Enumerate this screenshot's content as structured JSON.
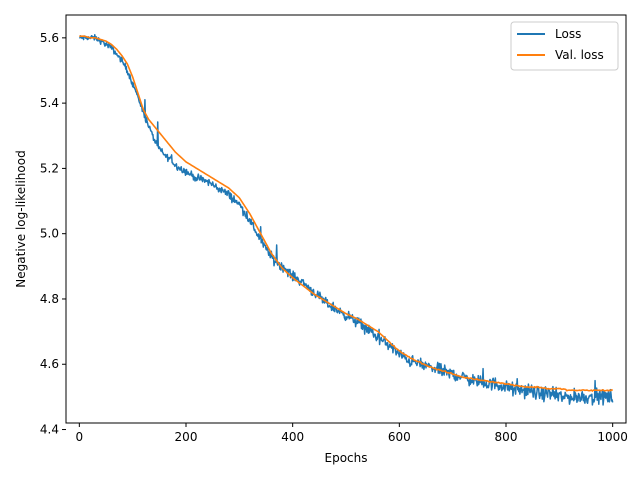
{
  "chart_data": {
    "type": "line",
    "title": "",
    "xlabel": "Epochs",
    "ylabel": "Negative log-likelihood",
    "xlim": [
      -25,
      1025
    ],
    "ylim": [
      4.42,
      5.67
    ],
    "xticks": [
      0,
      200,
      400,
      600,
      800,
      1000
    ],
    "yticks": [
      4.4,
      4.6,
      4.8,
      5.0,
      5.2,
      5.4,
      5.6
    ],
    "xtick_labels": [
      "0",
      "200",
      "400",
      "600",
      "800",
      "1000"
    ],
    "ytick_labels": [
      "4.4",
      "4.6",
      "4.8",
      "5.0",
      "5.2",
      "5.4",
      "5.6"
    ],
    "grid": false,
    "legend_position": "top-right",
    "series": [
      {
        "name": "Loss",
        "color": "#1f77b4",
        "noisy": true,
        "x": [
          0,
          10,
          20,
          30,
          40,
          50,
          60,
          70,
          80,
          90,
          100,
          110,
          120,
          130,
          140,
          150,
          160,
          170,
          180,
          190,
          200,
          220,
          240,
          260,
          280,
          300,
          320,
          340,
          360,
          380,
          400,
          420,
          440,
          460,
          480,
          500,
          520,
          540,
          560,
          580,
          600,
          620,
          640,
          660,
          680,
          700,
          720,
          740,
          760,
          780,
          800,
          820,
          840,
          860,
          880,
          900,
          920,
          940,
          960,
          980,
          1000
        ],
        "y": [
          5.6,
          5.6,
          5.6,
          5.6,
          5.59,
          5.58,
          5.57,
          5.55,
          5.53,
          5.5,
          5.46,
          5.42,
          5.37,
          5.33,
          5.29,
          5.26,
          5.24,
          5.23,
          5.21,
          5.2,
          5.19,
          5.17,
          5.16,
          5.14,
          5.12,
          5.09,
          5.04,
          4.98,
          4.93,
          4.9,
          4.87,
          4.85,
          4.82,
          4.79,
          4.77,
          4.75,
          4.73,
          4.71,
          4.68,
          4.66,
          4.63,
          4.61,
          4.6,
          4.59,
          4.58,
          4.57,
          4.56,
          4.55,
          4.54,
          4.54,
          4.53,
          4.52,
          4.52,
          4.51,
          4.51,
          4.5,
          4.5,
          4.5,
          4.5,
          4.5,
          4.5
        ]
      },
      {
        "name": "Val. loss",
        "color": "#ff7f0e",
        "noisy": false,
        "x": [
          0,
          10,
          20,
          30,
          40,
          50,
          60,
          70,
          80,
          90,
          100,
          110,
          120,
          130,
          140,
          150,
          160,
          170,
          180,
          190,
          200,
          220,
          240,
          260,
          280,
          300,
          320,
          340,
          360,
          380,
          400,
          420,
          440,
          460,
          480,
          500,
          520,
          540,
          560,
          580,
          600,
          620,
          640,
          660,
          680,
          700,
          720,
          740,
          760,
          780,
          800,
          820,
          840,
          860,
          880,
          900,
          920,
          940,
          960,
          980,
          1000
        ],
        "y": [
          5.605,
          5.605,
          5.6,
          5.6,
          5.595,
          5.59,
          5.58,
          5.565,
          5.545,
          5.52,
          5.48,
          5.43,
          5.38,
          5.35,
          5.33,
          5.31,
          5.29,
          5.27,
          5.25,
          5.235,
          5.22,
          5.2,
          5.18,
          5.16,
          5.14,
          5.11,
          5.06,
          5.0,
          4.94,
          4.895,
          4.865,
          4.84,
          4.815,
          4.795,
          4.775,
          4.755,
          4.74,
          4.72,
          4.7,
          4.67,
          4.64,
          4.62,
          4.605,
          4.59,
          4.58,
          4.57,
          4.56,
          4.555,
          4.55,
          4.545,
          4.54,
          4.535,
          4.53,
          4.53,
          4.525,
          4.525,
          4.52,
          4.52,
          4.52,
          4.52,
          4.52
        ]
      }
    ]
  }
}
